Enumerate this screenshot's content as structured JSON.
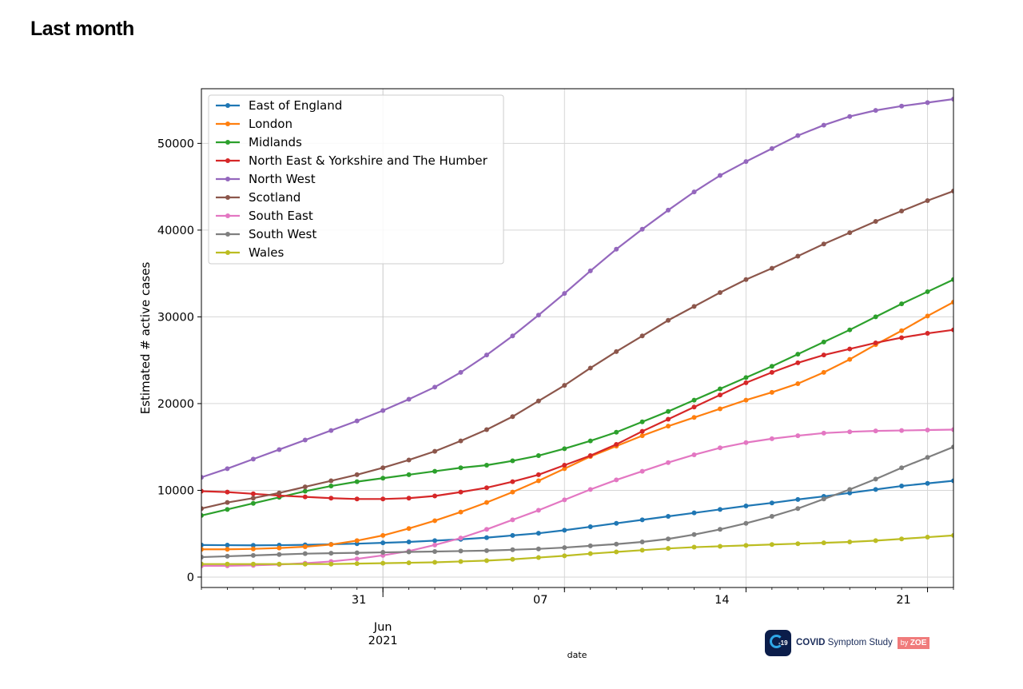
{
  "page": {
    "title": "Last month"
  },
  "logo": {
    "brand_bold": "COVID",
    "brand_rest": " Symptom Study",
    "badge_by": "by ",
    "badge_name": "ZOE",
    "mark_text": "-19"
  },
  "chart_data": {
    "type": "line",
    "xlabel": "date",
    "ylabel": "Estimated # active cases",
    "ylim": [
      -1200,
      56300
    ],
    "xlim": [
      "2021-05-24",
      "2021-06-22"
    ],
    "grid": true,
    "legend_position": "top-left",
    "x_ticks": [
      {
        "date": "2021-05-31",
        "label": "31",
        "sub": [
          "Jun",
          "2021"
        ],
        "major": true
      },
      {
        "date": "2021-06-07",
        "label": "07",
        "sub": [],
        "major": false
      },
      {
        "date": "2021-06-14",
        "label": "14",
        "sub": [],
        "major": false
      },
      {
        "date": "2021-06-21",
        "label": "21",
        "sub": [],
        "major": false
      }
    ],
    "y_ticks": [
      0,
      10000,
      20000,
      30000,
      40000,
      50000
    ],
    "x": [
      "2021-05-24",
      "2021-05-25",
      "2021-05-26",
      "2021-05-27",
      "2021-05-28",
      "2021-05-29",
      "2021-05-30",
      "2021-05-31",
      "2021-06-01",
      "2021-06-02",
      "2021-06-03",
      "2021-06-04",
      "2021-06-05",
      "2021-06-06",
      "2021-06-07",
      "2021-06-08",
      "2021-06-09",
      "2021-06-10",
      "2021-06-11",
      "2021-06-12",
      "2021-06-13",
      "2021-06-14",
      "2021-06-15",
      "2021-06-16",
      "2021-06-17",
      "2021-06-18",
      "2021-06-19",
      "2021-06-20",
      "2021-06-21",
      "2021-06-22"
    ],
    "series": [
      {
        "name": "East of England",
        "color": "#1f77b4",
        "values": [
          3700,
          3680,
          3660,
          3680,
          3720,
          3780,
          3850,
          3950,
          4050,
          4200,
          4350,
          4550,
          4800,
          5050,
          5400,
          5800,
          6200,
          6600,
          7000,
          7400,
          7800,
          8200,
          8550,
          8950,
          9300,
          9700,
          10100,
          10500,
          10800,
          11100
        ]
      },
      {
        "name": "London",
        "color": "#ff7f0e",
        "values": [
          3200,
          3200,
          3250,
          3350,
          3500,
          3750,
          4200,
          4800,
          5600,
          6500,
          7500,
          8600,
          9800,
          11100,
          12500,
          13900,
          15100,
          16300,
          17400,
          18400,
          19400,
          20400,
          21300,
          22300,
          23600,
          25100,
          26800,
          28400,
          30100,
          31700
        ]
      },
      {
        "name": "Midlands",
        "color": "#2ca02c",
        "values": [
          7100,
          7800,
          8500,
          9200,
          9900,
          10500,
          11000,
          11400,
          11800,
          12200,
          12600,
          12900,
          13400,
          14000,
          14800,
          15700,
          16700,
          17900,
          19100,
          20400,
          21700,
          23000,
          24300,
          25700,
          27100,
          28500,
          30000,
          31500,
          32900,
          34300
        ]
      },
      {
        "name": "North East & Yorkshire and The Humber",
        "color": "#d62728",
        "values": [
          9900,
          9800,
          9600,
          9400,
          9250,
          9100,
          9000,
          9000,
          9100,
          9350,
          9800,
          10300,
          11000,
          11800,
          12900,
          14000,
          15300,
          16800,
          18200,
          19600,
          21000,
          22400,
          23600,
          24700,
          25600,
          26300,
          27000,
          27600,
          28100,
          28500
        ]
      },
      {
        "name": "North West",
        "color": "#9467bd",
        "values": [
          11500,
          12500,
          13600,
          14700,
          15800,
          16900,
          18000,
          19200,
          20500,
          21900,
          23600,
          25600,
          27800,
          30200,
          32700,
          35300,
          37800,
          40100,
          42300,
          44400,
          46300,
          47900,
          49400,
          50900,
          52100,
          53100,
          53800,
          54300,
          54700,
          55100
        ]
      },
      {
        "name": "Scotland",
        "color": "#8c564b",
        "values": [
          7900,
          8600,
          9100,
          9700,
          10400,
          11100,
          11800,
          12600,
          13500,
          14500,
          15700,
          17000,
          18500,
          20300,
          22100,
          24100,
          26000,
          27800,
          29600,
          31200,
          32800,
          34300,
          35600,
          37000,
          38400,
          39700,
          41000,
          42200,
          43400,
          44500
        ]
      },
      {
        "name": "South East",
        "color": "#e377c2",
        "values": [
          1300,
          1300,
          1350,
          1450,
          1600,
          1800,
          2100,
          2500,
          3000,
          3700,
          4500,
          5500,
          6600,
          7700,
          8900,
          10100,
          11200,
          12200,
          13200,
          14100,
          14900,
          15500,
          15950,
          16300,
          16600,
          16750,
          16850,
          16900,
          16950,
          17000
        ]
      },
      {
        "name": "South West",
        "color": "#7f7f7f",
        "values": [
          2300,
          2400,
          2500,
          2600,
          2700,
          2750,
          2800,
          2850,
          2900,
          2950,
          3000,
          3050,
          3150,
          3250,
          3400,
          3600,
          3800,
          4050,
          4400,
          4900,
          5500,
          6200,
          7000,
          7900,
          9000,
          10100,
          11300,
          12600,
          13800,
          15000
        ]
      },
      {
        "name": "Wales",
        "color": "#bcbd22",
        "values": [
          1500,
          1500,
          1500,
          1500,
          1500,
          1500,
          1550,
          1600,
          1650,
          1700,
          1800,
          1900,
          2050,
          2250,
          2450,
          2700,
          2900,
          3100,
          3300,
          3450,
          3550,
          3650,
          3750,
          3850,
          3950,
          4050,
          4200,
          4400,
          4600,
          4800
        ]
      }
    ]
  }
}
